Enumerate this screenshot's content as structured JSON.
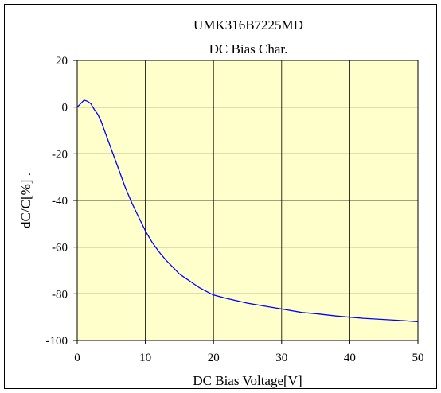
{
  "chart_data": {
    "type": "line",
    "title": "UMK316B7225MD",
    "subtitle": "DC Bias Char.",
    "xlabel": "DC Bias Voltage[V]",
    "ylabel": "dC/C[%] .",
    "xlim": [
      0,
      50
    ],
    "ylim": [
      -100,
      20
    ],
    "xticks": [
      0,
      10,
      20,
      30,
      40,
      50
    ],
    "yticks": [
      20,
      0,
      -20,
      -40,
      -60,
      -80,
      -100
    ],
    "grid": true,
    "legend": "none",
    "colors": {
      "plot_background": "#ffffcc",
      "line": "#0000ff",
      "grid": "#000000"
    },
    "series": [
      {
        "x": [
          0,
          0.5,
          1,
          1.5,
          2,
          2.5,
          3,
          3.5,
          4,
          5,
          6,
          7,
          8,
          9,
          10,
          11,
          12,
          13,
          14,
          15,
          16,
          17,
          18,
          19,
          20,
          22,
          25,
          28,
          30,
          33,
          35,
          38,
          40,
          42,
          45,
          48,
          50
        ],
        "values": [
          0,
          1.5,
          3,
          2.5,
          1.5,
          -1,
          -3,
          -6,
          -10,
          -18,
          -26,
          -34,
          -41,
          -47,
          -53,
          -58,
          -62,
          -65.5,
          -68.5,
          -71.5,
          -73.5,
          -75.5,
          -77.5,
          -79,
          -80.5,
          -82,
          -84,
          -85.5,
          -86.5,
          -88,
          -88.5,
          -89.5,
          -90,
          -90.5,
          -91,
          -91.5,
          -92
        ]
      }
    ]
  }
}
